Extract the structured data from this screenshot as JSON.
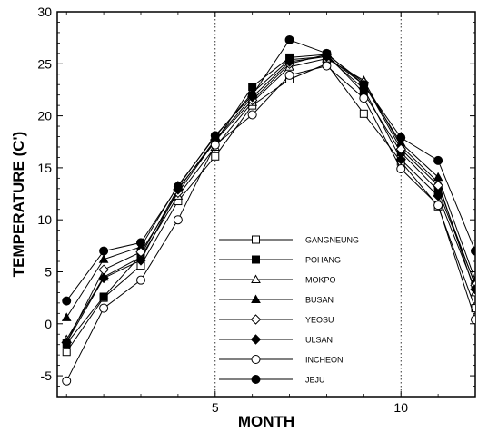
{
  "chart_data": {
    "type": "line",
    "title": "",
    "xlabel": "MONTH",
    "ylabel": "TEMPERATURE (C')",
    "xlim": [
      0.75,
      12.0
    ],
    "ylim": [
      -7,
      30
    ],
    "xticks": [
      5,
      10
    ],
    "yticks": [
      -5,
      0,
      5,
      10,
      15,
      20,
      25,
      30
    ],
    "x_gridlines": [
      5,
      10
    ],
    "grid_style": "dotted vertical lines at x ticks",
    "legend_position": "center, inside plot area",
    "x": [
      1,
      2,
      3,
      4,
      5,
      6,
      7,
      8,
      9,
      10,
      11,
      12
    ],
    "series": [
      {
        "name": "GANGNEUNG",
        "marker": "square-open",
        "values": [
          -2.7,
          2.5,
          5.6,
          11.8,
          16.1,
          21.0,
          23.5,
          25.0,
          20.2,
          15.6,
          11.3,
          1.5
        ]
      },
      {
        "name": "POHANG",
        "marker": "square-filled",
        "values": [
          -1.9,
          2.6,
          6.6,
          13.0,
          17.5,
          22.8,
          25.6,
          25.9,
          22.2,
          16.5,
          12.8,
          3.8
        ]
      },
      {
        "name": "MOKPO",
        "marker": "triangle-open",
        "values": [
          -1.5,
          4.5,
          6.4,
          12.3,
          17.0,
          21.3,
          24.7,
          25.5,
          23.4,
          17.1,
          13.6,
          3.0
        ]
      },
      {
        "name": "BUSAN",
        "marker": "triangle-filled",
        "values": [
          0.6,
          6.2,
          7.4,
          13.3,
          18.0,
          22.2,
          25.4,
          25.7,
          23.0,
          17.4,
          14.1,
          4.2
        ]
      },
      {
        "name": "YEOSU",
        "marker": "diamond-open",
        "values": [
          -1.8,
          5.2,
          6.9,
          12.6,
          17.6,
          21.5,
          25.0,
          25.9,
          23.2,
          16.8,
          13.3,
          3.7
        ]
      },
      {
        "name": "ULSAN",
        "marker": "diamond-filled",
        "values": [
          -1.8,
          4.4,
          6.1,
          12.9,
          17.7,
          21.8,
          25.2,
          25.7,
          22.6,
          15.8,
          12.3,
          3.3
        ]
      },
      {
        "name": "INCHEON",
        "marker": "circle-open",
        "values": [
          -5.5,
          1.5,
          4.2,
          10.0,
          17.2,
          20.1,
          23.9,
          24.8,
          21.7,
          14.9,
          11.4,
          0.4
        ]
      },
      {
        "name": "JEJU",
        "marker": "circle-filled",
        "values": [
          2.2,
          7.0,
          7.8,
          13.2,
          18.1,
          22.0,
          27.3,
          26.0,
          23.0,
          17.9,
          15.7,
          7.0
        ]
      }
    ]
  }
}
